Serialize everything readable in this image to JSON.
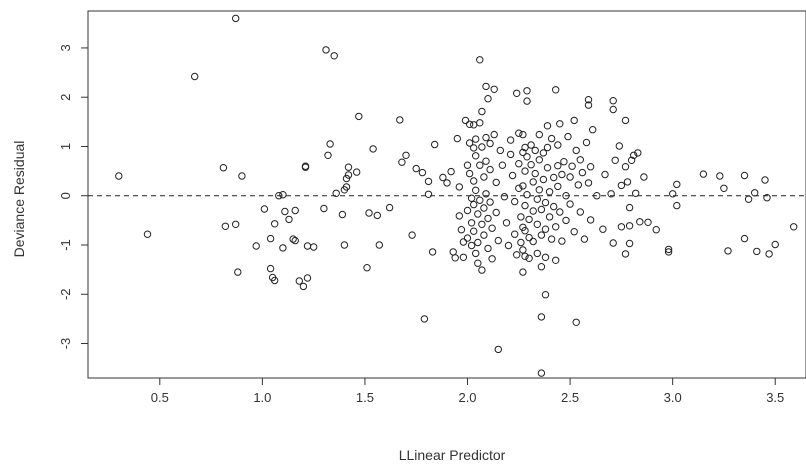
{
  "chart_data": {
    "type": "scatter",
    "title": "",
    "xlabel": "LLinear Predictor",
    "ylabel": "Deviance Residual",
    "xlim": [
      0.15,
      3.65
    ],
    "ylim": [
      -3.7,
      3.75
    ],
    "xticks": [
      0.5,
      1.0,
      1.5,
      2.0,
      2.5,
      3.0,
      3.5
    ],
    "xtick_labels": [
      "0.5",
      "1.0",
      "1.5",
      "2.0",
      "2.5",
      "3.0",
      "3.5"
    ],
    "yticks": [
      -3,
      -2,
      -1,
      0,
      1,
      2,
      3
    ],
    "ytick_labels": [
      "-3",
      "-2",
      "-1",
      "0",
      "1",
      "2",
      "3"
    ],
    "reference_line": {
      "y": 0,
      "style": "dashed"
    },
    "grid": false,
    "marker": "open-circle",
    "colors": {
      "points": "#222222",
      "axes": "#333333",
      "reference_line": "#222222",
      "background": "#ffffff"
    },
    "series": [
      {
        "points": [
          [
            0.3,
            0.4
          ],
          [
            0.44,
            -0.78
          ],
          [
            0.67,
            2.42
          ],
          [
            0.81,
            0.57
          ],
          [
            0.82,
            -0.62
          ],
          [
            0.87,
            3.6
          ],
          [
            0.87,
            -0.58
          ],
          [
            0.88,
            -1.55
          ],
          [
            0.9,
            0.4
          ],
          [
            0.97,
            -1.02
          ],
          [
            1.01,
            -0.27
          ],
          [
            1.04,
            -0.87
          ],
          [
            1.04,
            -1.48
          ],
          [
            1.05,
            -1.66
          ],
          [
            1.06,
            -1.72
          ],
          [
            1.06,
            -0.57
          ],
          [
            1.08,
            0.0
          ],
          [
            1.1,
            0.02
          ],
          [
            1.1,
            -1.06
          ],
          [
            1.11,
            -0.32
          ],
          [
            1.13,
            -0.48
          ],
          [
            1.15,
            -0.88
          ],
          [
            1.16,
            -0.91
          ],
          [
            1.16,
            -0.3
          ],
          [
            1.18,
            -1.73
          ],
          [
            1.2,
            -1.84
          ],
          [
            1.21,
            0.58
          ],
          [
            1.21,
            0.6
          ],
          [
            1.22,
            -1.67
          ],
          [
            1.22,
            -1.02
          ],
          [
            1.25,
            -1.04
          ],
          [
            1.3,
            -0.26
          ],
          [
            1.31,
            2.96
          ],
          [
            1.32,
            0.82
          ],
          [
            1.33,
            1.05
          ],
          [
            1.35,
            2.84
          ],
          [
            1.36,
            0.05
          ],
          [
            1.39,
            -0.38
          ],
          [
            1.4,
            -1.0
          ],
          [
            1.4,
            0.12
          ],
          [
            1.41,
            0.18
          ],
          [
            1.41,
            0.35
          ],
          [
            1.42,
            0.42
          ],
          [
            1.42,
            0.58
          ],
          [
            1.46,
            0.48
          ],
          [
            1.47,
            1.61
          ],
          [
            1.51,
            -1.46
          ],
          [
            1.52,
            -0.35
          ],
          [
            1.54,
            0.95
          ],
          [
            1.56,
            -0.4
          ],
          [
            1.57,
            -1.0
          ],
          [
            1.62,
            -0.24
          ],
          [
            1.67,
            1.54
          ],
          [
            1.68,
            0.68
          ],
          [
            1.7,
            0.82
          ],
          [
            1.73,
            -0.8
          ],
          [
            1.75,
            0.55
          ],
          [
            1.78,
            0.47
          ],
          [
            1.79,
            -2.5
          ],
          [
            1.81,
            0.29
          ],
          [
            1.81,
            0.03
          ],
          [
            1.83,
            -1.14
          ],
          [
            1.84,
            1.04
          ],
          [
            1.88,
            0.37
          ],
          [
            1.9,
            0.26
          ],
          [
            1.92,
            0.49
          ],
          [
            1.93,
            -1.14
          ],
          [
            1.94,
            -1.26
          ],
          [
            1.95,
            1.16
          ],
          [
            1.96,
            0.18
          ],
          [
            1.96,
            -0.41
          ],
          [
            1.97,
            -0.69
          ],
          [
            1.98,
            -0.94
          ],
          [
            1.98,
            -1.25
          ],
          [
            1.99,
            1.53
          ],
          [
            2.0,
            0.62
          ],
          [
            2.0,
            -0.3
          ],
          [
            2.0,
            -0.86
          ],
          [
            2.01,
            1.45
          ],
          [
            2.01,
            1.07
          ],
          [
            2.01,
            0.45
          ],
          [
            2.02,
            -0.05
          ],
          [
            2.02,
            -0.55
          ],
          [
            2.02,
            -1.01
          ],
          [
            2.03,
            1.44
          ],
          [
            2.03,
            0.97
          ],
          [
            2.03,
            0.3
          ],
          [
            2.03,
            -0.18
          ],
          [
            2.03,
            -0.72
          ],
          [
            2.04,
            -1.17
          ],
          [
            2.04,
            1.15
          ],
          [
            2.04,
            0.81
          ],
          [
            2.04,
            0.11
          ],
          [
            2.05,
            -0.37
          ],
          [
            2.05,
            -0.95
          ],
          [
            2.05,
            -1.37
          ],
          [
            2.06,
            2.76
          ],
          [
            2.06,
            1.48
          ],
          [
            2.06,
            0.62
          ],
          [
            2.06,
            -0.09
          ],
          [
            2.07,
            -0.58
          ],
          [
            2.07,
            -1.51
          ],
          [
            2.07,
            1.71
          ],
          [
            2.07,
            0.99
          ],
          [
            2.08,
            0.38
          ],
          [
            2.08,
            -0.25
          ],
          [
            2.08,
            -0.8
          ],
          [
            2.09,
            2.22
          ],
          [
            2.09,
            1.18
          ],
          [
            2.09,
            0.7
          ],
          [
            2.09,
            0.04
          ],
          [
            2.1,
            -0.46
          ],
          [
            2.1,
            -1.07
          ],
          [
            2.1,
            1.97
          ],
          [
            2.11,
            1.06
          ],
          [
            2.11,
            0.53
          ],
          [
            2.11,
            -0.13
          ],
          [
            2.12,
            -0.66
          ],
          [
            2.12,
            -1.28
          ],
          [
            2.13,
            2.16
          ],
          [
            2.13,
            1.24
          ],
          [
            2.14,
            0.27
          ],
          [
            2.14,
            -0.34
          ],
          [
            2.15,
            -0.91
          ],
          [
            2.15,
            -3.12
          ],
          [
            2.16,
            0.92
          ],
          [
            2.17,
            0.62
          ],
          [
            2.18,
            -0.02
          ],
          [
            2.19,
            -0.55
          ],
          [
            2.2,
            -1.01
          ],
          [
            2.21,
            0.84
          ],
          [
            2.21,
            1.13
          ],
          [
            2.22,
            0.41
          ],
          [
            2.23,
            -0.12
          ],
          [
            2.23,
            -0.78
          ],
          [
            2.24,
            2.08
          ],
          [
            2.24,
            -1.2
          ],
          [
            2.25,
            1.27
          ],
          [
            2.25,
            0.65
          ],
          [
            2.25,
            0.15
          ],
          [
            2.26,
            -0.43
          ],
          [
            2.26,
            -0.95
          ],
          [
            2.27,
            1.24
          ],
          [
            2.27,
            0.88
          ],
          [
            2.27,
            0.2
          ],
          [
            2.27,
            -0.64
          ],
          [
            2.27,
            -1.1
          ],
          [
            2.27,
            -1.55
          ],
          [
            2.28,
            0.98
          ],
          [
            2.28,
            0.5
          ],
          [
            2.28,
            -0.2
          ],
          [
            2.28,
            -0.71
          ],
          [
            2.28,
            -1.23
          ],
          [
            2.29,
            2.13
          ],
          [
            2.29,
            1.92
          ],
          [
            2.29,
            0.79
          ],
          [
            2.29,
            0.02
          ],
          [
            2.3,
            -0.48
          ],
          [
            2.3,
            -0.85
          ],
          [
            2.3,
            -1.27
          ],
          [
            2.31,
            1.03
          ],
          [
            2.31,
            0.63
          ],
          [
            2.32,
            0.28
          ],
          [
            2.32,
            -0.31
          ],
          [
            2.32,
            -0.93
          ],
          [
            2.33,
            0.92
          ],
          [
            2.33,
            0.45
          ],
          [
            2.34,
            -0.07
          ],
          [
            2.34,
            -0.58
          ],
          [
            2.34,
            -1.17
          ],
          [
            2.35,
            1.24
          ],
          [
            2.35,
            0.73
          ],
          [
            2.35,
            0.12
          ],
          [
            2.36,
            -0.28
          ],
          [
            2.36,
            -0.8
          ],
          [
            2.36,
            -1.44
          ],
          [
            2.36,
            -2.46
          ],
          [
            2.36,
            -3.6
          ],
          [
            2.37,
            0.87
          ],
          [
            2.37,
            0.33
          ],
          [
            2.38,
            -0.14
          ],
          [
            2.38,
            -0.68
          ],
          [
            2.38,
            -1.25
          ],
          [
            2.38,
            -2.01
          ],
          [
            2.39,
            1.42
          ],
          [
            2.39,
            0.98
          ],
          [
            2.39,
            0.57
          ],
          [
            2.4,
            0.08
          ],
          [
            2.4,
            -0.43
          ],
          [
            2.41,
            -0.88
          ],
          [
            2.41,
            1.16
          ],
          [
            2.42,
            0.37
          ],
          [
            2.42,
            -0.22
          ],
          [
            2.43,
            2.15
          ],
          [
            2.43,
            -0.63
          ],
          [
            2.43,
            -1.31
          ],
          [
            2.44,
            1.03
          ],
          [
            2.44,
            0.61
          ],
          [
            2.44,
            0.19
          ],
          [
            2.45,
            1.46
          ],
          [
            2.45,
            -0.33
          ],
          [
            2.46,
            -0.92
          ],
          [
            2.46,
            0.43
          ],
          [
            2.47,
            0.69
          ],
          [
            2.48,
            0.0
          ],
          [
            2.48,
            -0.5
          ],
          [
            2.49,
            1.2
          ],
          [
            2.5,
            0.38
          ],
          [
            2.5,
            -0.17
          ],
          [
            2.51,
            0.6
          ],
          [
            2.52,
            -0.73
          ],
          [
            2.52,
            1.53
          ],
          [
            2.53,
            0.92
          ],
          [
            2.53,
            -2.57
          ],
          [
            2.54,
            0.22
          ],
          [
            2.55,
            -0.33
          ],
          [
            2.55,
            0.73
          ],
          [
            2.56,
            0.47
          ],
          [
            2.57,
            -0.88
          ],
          [
            2.58,
            1.08
          ],
          [
            2.59,
            1.95
          ],
          [
            2.59,
            1.84
          ],
          [
            2.59,
            0.26
          ],
          [
            2.6,
            -0.49
          ],
          [
            2.6,
            0.59
          ],
          [
            2.61,
            1.34
          ],
          [
            2.63,
            0.0
          ],
          [
            2.66,
            -0.68
          ],
          [
            2.67,
            0.43
          ],
          [
            2.7,
            0.04
          ],
          [
            2.71,
            1.93
          ],
          [
            2.71,
            1.75
          ],
          [
            2.71,
            -0.96
          ],
          [
            2.72,
            0.72
          ],
          [
            2.74,
            1.01
          ],
          [
            2.75,
            0.21
          ],
          [
            2.75,
            -0.63
          ],
          [
            2.77,
            0.59
          ],
          [
            2.77,
            1.53
          ],
          [
            2.77,
            -1.18
          ],
          [
            2.78,
            0.28
          ],
          [
            2.79,
            -0.61
          ],
          [
            2.79,
            -0.97
          ],
          [
            2.79,
            -0.24
          ],
          [
            2.8,
            0.72
          ],
          [
            2.81,
            0.82
          ],
          [
            2.82,
            0.05
          ],
          [
            2.83,
            0.87
          ],
          [
            2.84,
            -0.53
          ],
          [
            2.86,
            0.38
          ],
          [
            2.88,
            -0.54
          ],
          [
            2.92,
            -0.69
          ],
          [
            2.98,
            -1.09
          ],
          [
            2.98,
            -1.14
          ],
          [
            3.0,
            0.04
          ],
          [
            3.02,
            0.23
          ],
          [
            3.02,
            -0.2
          ],
          [
            3.15,
            0.44
          ],
          [
            3.23,
            0.4
          ],
          [
            3.25,
            0.15
          ],
          [
            3.27,
            -1.12
          ],
          [
            3.35,
            0.41
          ],
          [
            3.35,
            -0.87
          ],
          [
            3.37,
            -0.07
          ],
          [
            3.4,
            0.06
          ],
          [
            3.41,
            -1.13
          ],
          [
            3.45,
            0.32
          ],
          [
            3.46,
            -0.04
          ],
          [
            3.47,
            -1.18
          ],
          [
            3.5,
            -0.99
          ],
          [
            3.59,
            -0.63
          ]
        ]
      }
    ]
  }
}
